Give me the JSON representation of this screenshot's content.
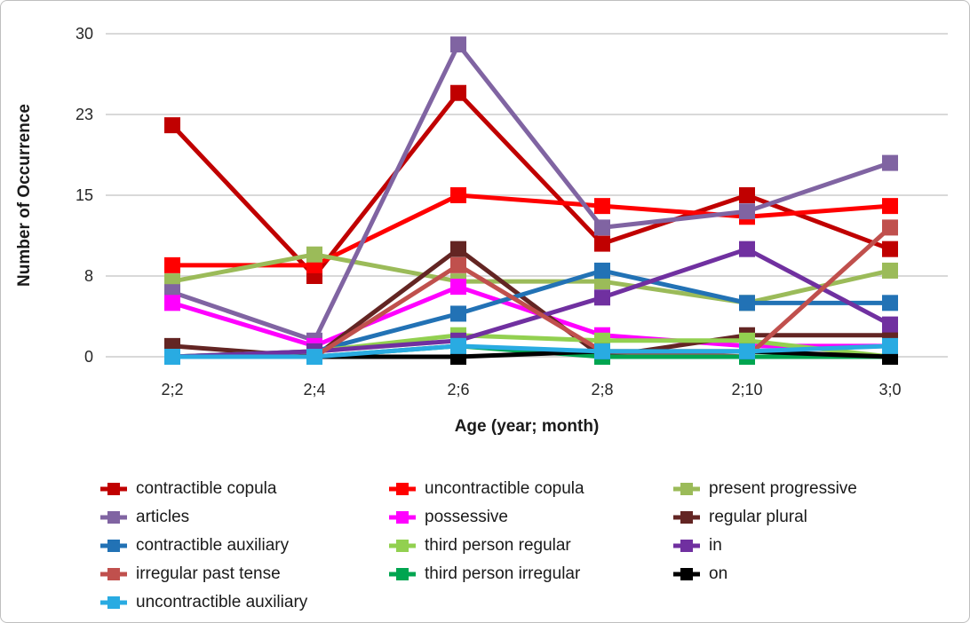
{
  "chart_data": {
    "type": "line",
    "title": "",
    "xlabel": "Age (year; month)",
    "ylabel": "Number of Occurrence",
    "categories": [
      "2;2",
      "2;4",
      "2;6",
      "2;8",
      "2;10",
      "3;0"
    ],
    "y_ticks": [
      {
        "value": 0,
        "label": "0"
      },
      {
        "value": 7.5,
        "label": "8"
      },
      {
        "value": 15,
        "label": "15"
      },
      {
        "value": 22.5,
        "label": "23"
      },
      {
        "value": 30,
        "label": "30"
      }
    ],
    "ylim": [
      0,
      30
    ],
    "grid": true,
    "legend_position": "bottom",
    "legend_columns": 3,
    "series": [
      {
        "name": "contractible copula",
        "color": "#C00000",
        "values": [
          21.5,
          7.5,
          24.5,
          10.5,
          15,
          10
        ]
      },
      {
        "name": "uncontractible copula",
        "color": "#FF0000",
        "values": [
          8.5,
          8.5,
          15,
          14,
          13,
          14
        ]
      },
      {
        "name": "present progressive",
        "color": "#9BBB59",
        "values": [
          7,
          9.5,
          7,
          7,
          5,
          8
        ]
      },
      {
        "name": "articles",
        "color": "#8064A2",
        "values": [
          6,
          1.5,
          29,
          12,
          13.5,
          18
        ]
      },
      {
        "name": "possessive",
        "color": "#FF00FF",
        "values": [
          5,
          1,
          6.5,
          2,
          1,
          1
        ]
      },
      {
        "name": "regular plural",
        "color": "#632523",
        "values": [
          1,
          0,
          10,
          0,
          2,
          2
        ]
      },
      {
        "name": "contractible auxiliary",
        "color": "#2272B5",
        "values": [
          0,
          0.5,
          4,
          8,
          5,
          5
        ]
      },
      {
        "name": "third person regular",
        "color": "#92D050",
        "values": [
          0,
          0.5,
          2,
          1.5,
          1.5,
          0
        ]
      },
      {
        "name": "in",
        "color": "#7030A0",
        "values": [
          0,
          0.5,
          1.5,
          5.5,
          10,
          3
        ]
      },
      {
        "name": "irregular past tense",
        "color": "#C0504D",
        "values": [
          0,
          0,
          8.5,
          0.5,
          0,
          12
        ]
      },
      {
        "name": "third person irregular",
        "color": "#00A550",
        "values": [
          0,
          0,
          1,
          0,
          0,
          0
        ]
      },
      {
        "name": "on",
        "color": "#000000",
        "values": [
          0,
          0,
          0,
          0.5,
          0.5,
          0
        ]
      },
      {
        "name": "uncontractible auxiliary",
        "color": "#29ABE2",
        "values": [
          0,
          0,
          1,
          0.5,
          0.5,
          1
        ]
      }
    ],
    "colors": {
      "gridline": "#D9D9D9",
      "text": "#262626",
      "frame_border": "#BFBFBF",
      "background": "#FFFFFF"
    }
  }
}
